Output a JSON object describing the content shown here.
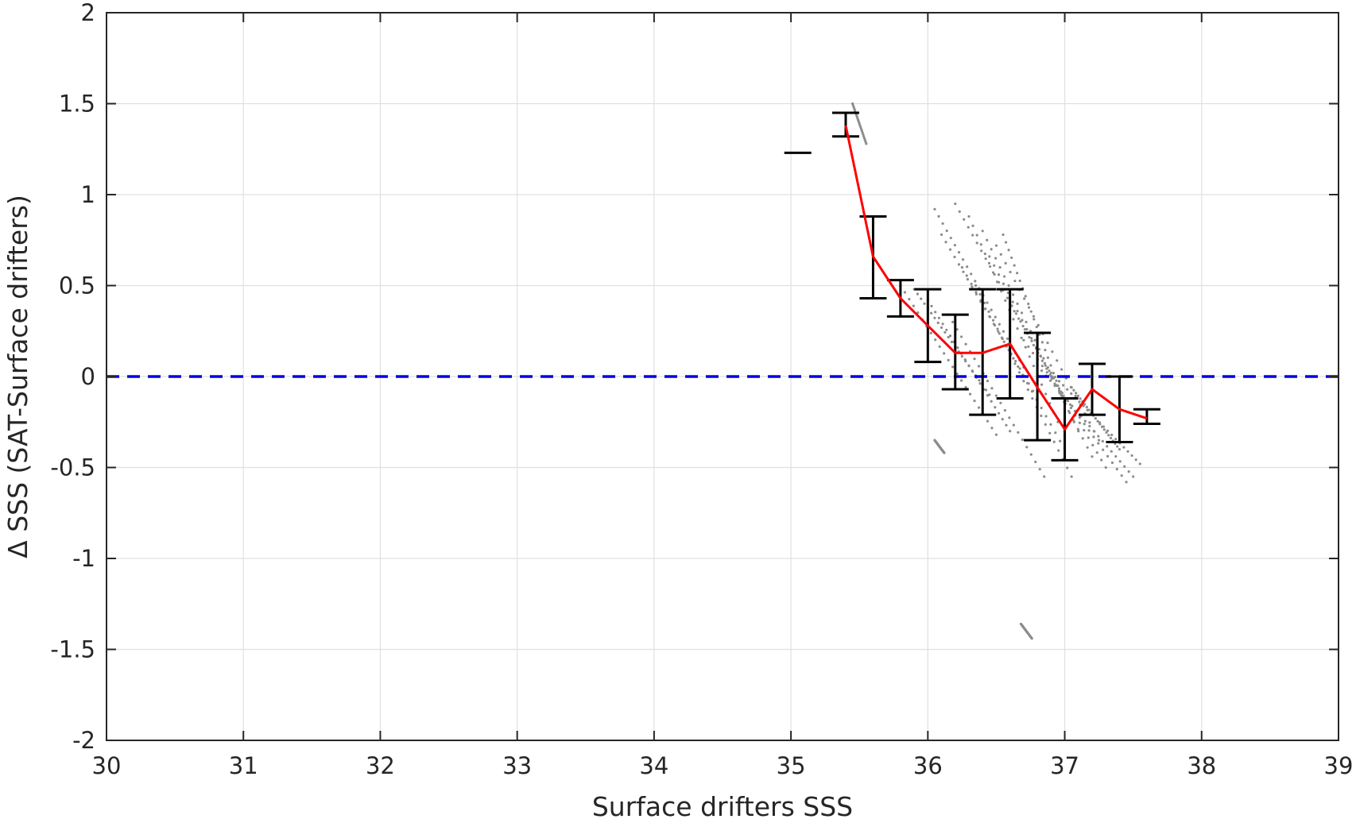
{
  "chart_data": {
    "type": "scatter",
    "xlabel": "Surface drifters SSS",
    "ylabel": "Δ SSS (SAT-Surface drifters)",
    "xlim": [
      30,
      39
    ],
    "ylim": [
      -2,
      2
    ],
    "x_ticks": [
      "30",
      "31",
      "32",
      "33",
      "34",
      "35",
      "36",
      "37",
      "38",
      "39"
    ],
    "y_ticks": [
      "-2",
      "-1.5",
      "-1",
      "-0.5",
      "0",
      "0.5",
      "1",
      "1.5",
      "2"
    ],
    "grid": true,
    "colors": {
      "scatter": "#8c8c8c",
      "mean_line": "#ff0000",
      "zero_line": "#0000e6",
      "error_bars": "#000000",
      "grid": "#e0e0e0",
      "axes": "#262626"
    },
    "zero_reference": {
      "y": 0,
      "style": "dashed"
    },
    "mean_line": {
      "x": [
        35.4,
        35.6,
        35.8,
        36.0,
        36.2,
        36.4,
        36.6,
        36.8,
        37.0,
        37.2,
        37.4,
        37.6
      ],
      "y": [
        1.38,
        0.66,
        0.43,
        0.28,
        0.13,
        0.13,
        0.18,
        -0.06,
        -0.29,
        -0.07,
        -0.18,
        -0.23
      ]
    },
    "error_bars": [
      {
        "x": 35.05,
        "low": 1.23,
        "high": 1.23
      },
      {
        "x": 35.4,
        "low": 1.32,
        "high": 1.45
      },
      {
        "x": 35.6,
        "low": 0.43,
        "high": 0.88
      },
      {
        "x": 35.8,
        "low": 0.33,
        "high": 0.53
      },
      {
        "x": 36.0,
        "low": 0.08,
        "high": 0.48
      },
      {
        "x": 36.2,
        "low": -0.07,
        "high": 0.34
      },
      {
        "x": 36.4,
        "low": -0.21,
        "high": 0.48
      },
      {
        "x": 36.6,
        "low": -0.12,
        "high": 0.48
      },
      {
        "x": 36.8,
        "low": -0.35,
        "high": 0.24
      },
      {
        "x": 37.0,
        "low": -0.46,
        "high": -0.12
      },
      {
        "x": 37.2,
        "low": -0.21,
        "high": 0.07
      },
      {
        "x": 37.4,
        "low": -0.36,
        "high": 0.0
      },
      {
        "x": 37.6,
        "low": -0.26,
        "high": -0.18
      }
    ],
    "scatter_tracks": [
      {
        "x0": 35.45,
        "y0": 1.5,
        "x1": 35.55,
        "y1": 1.28
      },
      {
        "x0": 35.8,
        "y0": 0.5,
        "x1": 36.5,
        "y1": -0.32
      },
      {
        "x0": 35.9,
        "y0": 0.48,
        "x1": 36.45,
        "y1": -0.1
      },
      {
        "x0": 36.0,
        "y0": 0.42,
        "x1": 36.6,
        "y1": -0.3
      },
      {
        "x0": 36.05,
        "y0": 0.92,
        "x1": 36.7,
        "y1": 0.05
      },
      {
        "x0": 36.1,
        "y0": 0.78,
        "x1": 36.8,
        "y1": -0.12
      },
      {
        "x0": 36.15,
        "y0": 0.34,
        "x1": 36.85,
        "y1": -0.55
      },
      {
        "x0": 36.2,
        "y0": 0.95,
        "x1": 36.9,
        "y1": 0.0
      },
      {
        "x0": 36.25,
        "y0": 0.6,
        "x1": 37.0,
        "y1": -0.4
      },
      {
        "x0": 36.3,
        "y0": 0.88,
        "x1": 36.95,
        "y1": -0.25
      },
      {
        "x0": 36.35,
        "y0": 0.5,
        "x1": 37.05,
        "y1": -0.55
      },
      {
        "x0": 36.4,
        "y0": 0.8,
        "x1": 37.1,
        "y1": -0.3
      },
      {
        "x0": 36.45,
        "y0": 0.66,
        "x1": 37.2,
        "y1": -0.44
      },
      {
        "x0": 36.5,
        "y0": 0.72,
        "x1": 37.25,
        "y1": -0.35
      },
      {
        "x0": 36.55,
        "y0": 0.78,
        "x1": 37.0,
        "y1": -0.15
      },
      {
        "x0": 36.6,
        "y0": 0.4,
        "x1": 37.3,
        "y1": -0.5
      },
      {
        "x0": 36.7,
        "y0": 0.2,
        "x1": 37.45,
        "y1": -0.58
      },
      {
        "x0": 36.8,
        "y0": 0.06,
        "x1": 37.5,
        "y1": -0.55
      },
      {
        "x0": 36.9,
        "y0": 0.02,
        "x1": 37.55,
        "y1": -0.48
      },
      {
        "x0": 37.05,
        "y0": -0.06,
        "x1": 37.4,
        "y1": -0.4
      },
      {
        "x0": 36.05,
        "y0": -0.35,
        "x1": 36.12,
        "y1": -0.42
      },
      {
        "x0": 36.68,
        "y0": -1.36,
        "x1": 36.76,
        "y1": -1.44
      }
    ]
  }
}
